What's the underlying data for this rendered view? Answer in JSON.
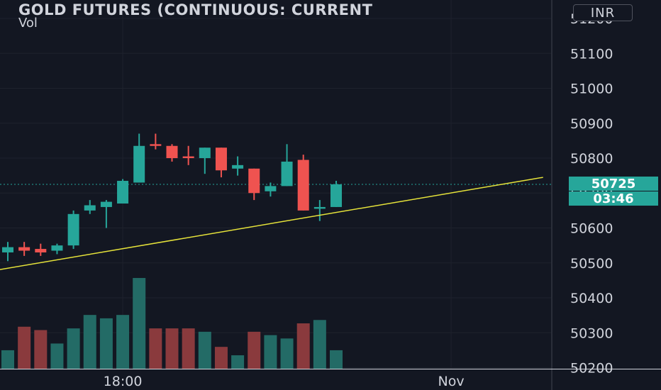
{
  "header": {
    "title": "GOLD FUTURES (CONTINUOUS: CURRENT",
    "volume_label": "Vol",
    "currency": "INR"
  },
  "price_tags": {
    "last_price": "50725",
    "countdown": "03:46"
  },
  "colors": {
    "background": "#131722",
    "up": "#26a69a",
    "down": "#ef5350",
    "up_volume": "#236b66",
    "down_volume": "#8a3a3d",
    "trendline": "#e6e33a",
    "grid": "#1e222d",
    "axis_text": "#d1d4dc"
  },
  "chart_data": {
    "type": "candlestick",
    "y_axis_ticks": [
      "51200",
      "51100",
      "51000",
      "50900",
      "50800",
      "50700",
      "50600",
      "50500",
      "50400",
      "50300",
      "50200"
    ],
    "ylim": [
      50200,
      51200
    ],
    "x_axis_ticks": [
      {
        "label": "18:00",
        "bar_index": 7
      },
      {
        "label": "Nov",
        "bar_index": 27
      }
    ],
    "grid": true,
    "candles": [
      {
        "o": 50530,
        "h": 50560,
        "l": 50505,
        "c": 50545,
        "v": 110
      },
      {
        "o": 50545,
        "h": 50560,
        "l": 50520,
        "c": 50535,
        "v": 250
      },
      {
        "o": 50540,
        "h": 50555,
        "l": 50520,
        "c": 50530,
        "v": 230
      },
      {
        "o": 50535,
        "h": 50555,
        "l": 50525,
        "c": 50550,
        "v": 150
      },
      {
        "o": 50550,
        "h": 50650,
        "l": 50540,
        "c": 50640,
        "v": 240
      },
      {
        "o": 50650,
        "h": 50680,
        "l": 50640,
        "c": 50665,
        "v": 320
      },
      {
        "o": 50660,
        "h": 50680,
        "l": 50600,
        "c": 50675,
        "v": 300
      },
      {
        "o": 50670,
        "h": 50740,
        "l": 50670,
        "c": 50735,
        "v": 320
      },
      {
        "o": 50730,
        "h": 50870,
        "l": 50730,
        "c": 50835,
        "v": 540
      },
      {
        "o": 50840,
        "h": 50870,
        "l": 50825,
        "c": 50835,
        "v": 240
      },
      {
        "o": 50835,
        "h": 50840,
        "l": 50790,
        "c": 50800,
        "v": 240
      },
      {
        "o": 50805,
        "h": 50835,
        "l": 50780,
        "c": 50800,
        "v": 240
      },
      {
        "o": 50800,
        "h": 50830,
        "l": 50755,
        "c": 50830,
        "v": 220
      },
      {
        "o": 50830,
        "h": 50830,
        "l": 50745,
        "c": 50765,
        "v": 130
      },
      {
        "o": 50770,
        "h": 50805,
        "l": 50750,
        "c": 50780,
        "v": 80
      },
      {
        "o": 50770,
        "h": 50770,
        "l": 50680,
        "c": 50700,
        "v": 220
      },
      {
        "o": 50705,
        "h": 50730,
        "l": 50690,
        "c": 50720,
        "v": 200
      },
      {
        "o": 50720,
        "h": 50840,
        "l": 50720,
        "c": 50790,
        "v": 180
      },
      {
        "o": 50795,
        "h": 50810,
        "l": 50650,
        "c": 50650,
        "v": 270
      },
      {
        "o": 50655,
        "h": 50680,
        "l": 50620,
        "c": 50660,
        "v": 290
      },
      {
        "o": 50660,
        "h": 50735,
        "l": 50660,
        "c": 50725,
        "v": 110
      }
    ],
    "last_price": 50725,
    "trendline": {
      "from": {
        "bar_index": -0.6,
        "price": 50480
      },
      "to": {
        "bar_index": 32.6,
        "price": 50745
      }
    }
  }
}
